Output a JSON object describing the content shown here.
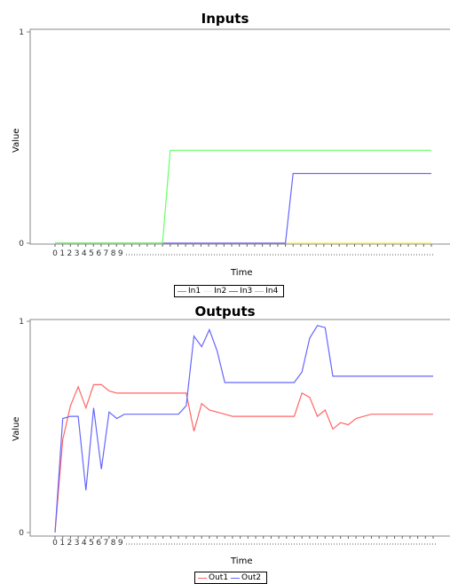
{
  "chart_data": [
    {
      "type": "line",
      "title": "Inputs",
      "xlabel": "Time",
      "ylabel": "Value",
      "ylim": [
        0,
        1
      ],
      "y_ticks": [
        "0",
        "1"
      ],
      "x_tick_labels": [
        "0",
        "1",
        "2",
        "3",
        "4",
        "5",
        "6",
        "7",
        "8",
        "9"
      ],
      "n_points": 50,
      "legend_placement": "bottom-center",
      "series": [
        {
          "name": "In1",
          "color": "#ff6666",
          "values": [
            0,
            0,
            0,
            0,
            0,
            0,
            0,
            0,
            0,
            0,
            0,
            0,
            0,
            0,
            0,
            0,
            0,
            0,
            0,
            0,
            0,
            0,
            0,
            0,
            0,
            0,
            0,
            0,
            0,
            0,
            0,
            0,
            0,
            0,
            0,
            0,
            0,
            0,
            0,
            0,
            0,
            0,
            0,
            0,
            0,
            0,
            0,
            0,
            0,
            0
          ]
        },
        {
          "name": "In2",
          "color": "#ffff66",
          "values": [
            0,
            0,
            0,
            0,
            0,
            0,
            0,
            0,
            0,
            0,
            0,
            0,
            0,
            0,
            0,
            0,
            0,
            0,
            0,
            0,
            0,
            0,
            0,
            0,
            0,
            0,
            0,
            0,
            0,
            0,
            0,
            0,
            0,
            0,
            0,
            0,
            0,
            0,
            0,
            0,
            0,
            0,
            0,
            0,
            0,
            0,
            0,
            0,
            0,
            0
          ]
        },
        {
          "name": "In3",
          "color": "#6666ff",
          "values": [
            0,
            0,
            0,
            0,
            0,
            0,
            0,
            0,
            0,
            0,
            0,
            0,
            0,
            0,
            0,
            0,
            0,
            0,
            0,
            0,
            0,
            0,
            0,
            0,
            0,
            0,
            0,
            0,
            0,
            0,
            0,
            0.33,
            0.33,
            0.33,
            0.33,
            0.33,
            0.33,
            0.33,
            0.33,
            0.33,
            0.33,
            0.33,
            0.33,
            0.33,
            0.33,
            0.33,
            0.33,
            0.33,
            0.33,
            0.33
          ]
        },
        {
          "name": "In4",
          "color": "#66ff66",
          "values": [
            0,
            0,
            0,
            0,
            0,
            0,
            0,
            0,
            0,
            0,
            0,
            0,
            0,
            0,
            0,
            0.44,
            0.44,
            0.44,
            0.44,
            0.44,
            0.44,
            0.44,
            0.44,
            0.44,
            0.44,
            0.44,
            0.44,
            0.44,
            0.44,
            0.44,
            0.44,
            0.44,
            0.44,
            0.44,
            0.44,
            0.44,
            0.44,
            0.44,
            0.44,
            0.44,
            0.44,
            0.44,
            0.44,
            0.44,
            0.44,
            0.44,
            0.44,
            0.44,
            0.44,
            0.44
          ]
        }
      ]
    },
    {
      "type": "line",
      "title": "Outputs",
      "xlabel": "Time",
      "ylabel": "Value",
      "ylim": [
        0,
        1
      ],
      "y_ticks": [
        "0",
        "1"
      ],
      "x_tick_labels": [
        "0",
        "1",
        "2",
        "3",
        "4",
        "5",
        "6",
        "7",
        "8",
        "9"
      ],
      "n_points": 50,
      "legend_placement": "bottom-center",
      "series": [
        {
          "name": "Out1",
          "color": "#ff6666",
          "values": [
            0,
            0.44,
            0.6,
            0.69,
            0.59,
            0.7,
            0.7,
            0.67,
            0.66,
            0.66,
            0.66,
            0.66,
            0.66,
            0.66,
            0.66,
            0.66,
            0.66,
            0.66,
            0.48,
            0.61,
            0.58,
            0.57,
            0.56,
            0.55,
            0.55,
            0.55,
            0.55,
            0.55,
            0.55,
            0.55,
            0.55,
            0.55,
            0.66,
            0.64,
            0.55,
            0.58,
            0.49,
            0.52,
            0.51,
            0.54,
            0.55,
            0.56,
            0.56,
            0.56,
            0.56,
            0.56,
            0.56,
            0.56,
            0.56,
            0.56
          ]
        },
        {
          "name": "Out2",
          "color": "#6666ff",
          "values": [
            0,
            0.54,
            0.55,
            0.55,
            0.2,
            0.59,
            0.3,
            0.57,
            0.54,
            0.56,
            0.56,
            0.56,
            0.56,
            0.56,
            0.56,
            0.56,
            0.56,
            0.6,
            0.93,
            0.88,
            0.96,
            0.86,
            0.71,
            0.71,
            0.71,
            0.71,
            0.71,
            0.71,
            0.71,
            0.71,
            0.71,
            0.71,
            0.76,
            0.92,
            0.98,
            0.97,
            0.74,
            0.74,
            0.74,
            0.74,
            0.74,
            0.74,
            0.74,
            0.74,
            0.74,
            0.74,
            0.74,
            0.74,
            0.74,
            0.74
          ]
        }
      ]
    }
  ]
}
